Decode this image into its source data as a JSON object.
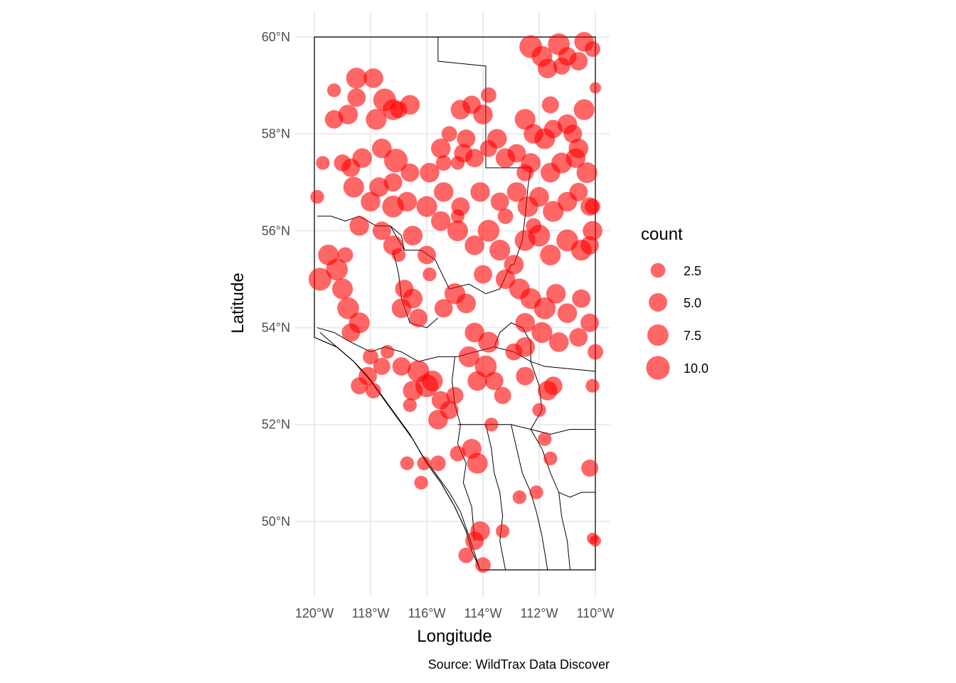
{
  "chart_data": {
    "type": "scatter",
    "title": "",
    "xlabel": "Longitude",
    "ylabel": "Latitude",
    "caption": "Source: WildTrax Data Discover",
    "xlim": [
      -120,
      -110
    ],
    "ylim": [
      49,
      60
    ],
    "x_ticks": [
      {
        "value": -120,
        "label": "120°W"
      },
      {
        "value": -118,
        "label": "118°W"
      },
      {
        "value": -116,
        "label": "116°W"
      },
      {
        "value": -114,
        "label": "114°W"
      },
      {
        "value": -112,
        "label": "112°W"
      },
      {
        "value": -110,
        "label": "110°W"
      }
    ],
    "y_ticks": [
      {
        "value": 50,
        "label": "50°N"
      },
      {
        "value": 52,
        "label": "52°N"
      },
      {
        "value": 54,
        "label": "54°N"
      },
      {
        "value": 56,
        "label": "56°N"
      },
      {
        "value": 58,
        "label": "58°N"
      },
      {
        "value": 60,
        "label": "60°N"
      }
    ],
    "grid": true,
    "point_color": "#ff0000",
    "point_opacity": 0.6,
    "legend": {
      "title": "count",
      "position": "right",
      "entries": [
        {
          "value": 2.5,
          "label": "2.5"
        },
        {
          "value": 5.0,
          "label": "5.0"
        },
        {
          "value": 7.5,
          "label": "7.5"
        },
        {
          "value": 10.0,
          "label": "10.0"
        }
      ]
    },
    "points": [
      [
        -111.3,
        59.85,
        8
      ],
      [
        -110.4,
        59.9,
        6
      ],
      [
        -110.1,
        59.75,
        3
      ],
      [
        -111.7,
        59.35,
        6
      ],
      [
        -111.9,
        59.6,
        7
      ],
      [
        -112.3,
        59.8,
        9
      ],
      [
        -111.0,
        59.6,
        5
      ],
      [
        -111.2,
        59.4,
        4
      ],
      [
        -110.6,
        59.5,
        5
      ],
      [
        -110.0,
        58.95,
        1
      ],
      [
        -118.5,
        59.15,
        7
      ],
      [
        -117.9,
        59.15,
        6
      ],
      [
        -117.5,
        58.7,
        9
      ],
      [
        -117.2,
        58.5,
        7
      ],
      [
        -116.6,
        58.6,
        6
      ],
      [
        -117.8,
        58.3,
        7
      ],
      [
        -118.8,
        58.4,
        6
      ],
      [
        -119.3,
        58.3,
        5
      ],
      [
        -117.0,
        58.5,
        4
      ],
      [
        -118.5,
        58.75,
        5
      ],
      [
        -114.8,
        58.5,
        6
      ],
      [
        -114.4,
        58.6,
        5
      ],
      [
        -114.0,
        58.4,
        6
      ],
      [
        -114.6,
        57.9,
        5
      ],
      [
        -113.5,
        57.9,
        6
      ],
      [
        -112.5,
        58.3,
        7
      ],
      [
        -112.2,
        58.0,
        6
      ],
      [
        -111.8,
        57.9,
        7
      ],
      [
        -111.5,
        58.1,
        5
      ],
      [
        -111.0,
        58.2,
        6
      ],
      [
        -110.8,
        58.0,
        5
      ],
      [
        -110.4,
        58.5,
        7
      ],
      [
        -110.6,
        57.7,
        6
      ],
      [
        -117.1,
        57.45,
        10
      ],
      [
        -117.6,
        57.7,
        6
      ],
      [
        -118.3,
        57.5,
        6
      ],
      [
        -118.7,
        57.3,
        5
      ],
      [
        -119.0,
        57.4,
        4
      ],
      [
        -117.7,
        56.9,
        6
      ],
      [
        -117.2,
        57.0,
        5
      ],
      [
        -116.6,
        57.2,
        5
      ],
      [
        -115.9,
        57.2,
        6
      ],
      [
        -115.5,
        57.7,
        6
      ],
      [
        -114.7,
        57.6,
        5
      ],
      [
        -114.3,
        57.5,
        5
      ],
      [
        -113.8,
        57.7,
        4
      ],
      [
        -113.2,
        57.5,
        6
      ],
      [
        -112.8,
        57.6,
        5
      ],
      [
        -112.3,
        57.4,
        6
      ],
      [
        -111.6,
        57.2,
        6
      ],
      [
        -111.2,
        57.4,
        7
      ],
      [
        -110.7,
        57.5,
        6
      ],
      [
        -110.3,
        57.2,
        7
      ],
      [
        -118.6,
        56.9,
        7
      ],
      [
        -118.0,
        56.6,
        6
      ],
      [
        -117.2,
        56.5,
        8
      ],
      [
        -116.7,
        56.6,
        6
      ],
      [
        -116.0,
        56.5,
        7
      ],
      [
        -115.4,
        56.8,
        6
      ],
      [
        -114.8,
        56.5,
        5
      ],
      [
        -114.1,
        56.8,
        6
      ],
      [
        -113.4,
        56.6,
        5
      ],
      [
        -112.8,
        56.8,
        6
      ],
      [
        -112.4,
        56.5,
        7
      ],
      [
        -112.0,
        56.7,
        6
      ],
      [
        -111.5,
        56.4,
        7
      ],
      [
        -111.0,
        56.6,
        6
      ],
      [
        -110.6,
        56.8,
        5
      ],
      [
        -110.2,
        56.5,
        5
      ],
      [
        -118.4,
        56.1,
        6
      ],
      [
        -117.6,
        56.0,
        5
      ],
      [
        -117.2,
        55.7,
        6
      ],
      [
        -116.5,
        55.9,
        6
      ],
      [
        -116.0,
        55.5,
        5
      ],
      [
        -115.5,
        56.2,
        6
      ],
      [
        -114.9,
        56.0,
        7
      ],
      [
        -114.3,
        55.7,
        6
      ],
      [
        -113.8,
        56.0,
        8
      ],
      [
        -113.4,
        55.6,
        7
      ],
      [
        -112.9,
        55.3,
        6
      ],
      [
        -112.5,
        55.8,
        7
      ],
      [
        -112.0,
        55.9,
        8
      ],
      [
        -111.6,
        55.5,
        7
      ],
      [
        -111.0,
        55.8,
        8
      ],
      [
        -110.5,
        55.6,
        7
      ],
      [
        -110.1,
        56.0,
        6
      ],
      [
        -110.2,
        55.7,
        5
      ],
      [
        -119.5,
        55.5,
        7
      ],
      [
        -119.2,
        55.2,
        8
      ],
      [
        -119.8,
        55.0,
        9
      ],
      [
        -119.0,
        54.8,
        7
      ],
      [
        -118.8,
        54.4,
        8
      ],
      [
        -118.4,
        54.1,
        7
      ],
      [
        -118.7,
        53.9,
        5
      ],
      [
        -116.9,
        54.4,
        6
      ],
      [
        -116.5,
        54.6,
        6
      ],
      [
        -116.8,
        54.8,
        5
      ],
      [
        -116.3,
        54.2,
        5
      ],
      [
        -115.0,
        54.7,
        7
      ],
      [
        -114.6,
        54.5,
        6
      ],
      [
        -115.4,
        54.4,
        5
      ],
      [
        -114.0,
        55.1,
        5
      ],
      [
        -113.2,
        55.0,
        6
      ],
      [
        -112.7,
        54.8,
        7
      ],
      [
        -112.3,
        54.6,
        7
      ],
      [
        -111.8,
        54.4,
        8
      ],
      [
        -111.4,
        54.7,
        6
      ],
      [
        -111.0,
        54.3,
        6
      ],
      [
        -110.5,
        54.6,
        5
      ],
      [
        -110.2,
        54.1,
        5
      ],
      [
        -112.5,
        54.1,
        6
      ],
      [
        -111.9,
        53.9,
        7
      ],
      [
        -111.3,
        53.7,
        6
      ],
      [
        -110.6,
        53.8,
        5
      ],
      [
        -110.0,
        53.5,
        3
      ],
      [
        -114.3,
        53.9,
        6
      ],
      [
        -113.8,
        53.7,
        7
      ],
      [
        -114.5,
        53.4,
        7
      ],
      [
        -113.9,
        53.2,
        8
      ],
      [
        -114.2,
        52.9,
        6
      ],
      [
        -113.6,
        52.9,
        5
      ],
      [
        -113.3,
        52.6,
        4
      ],
      [
        -112.5,
        53.6,
        6
      ],
      [
        -112.9,
        53.5,
        4
      ],
      [
        -116.3,
        53.1,
        8
      ],
      [
        -115.8,
        52.9,
        7
      ],
      [
        -116.5,
        52.7,
        6
      ],
      [
        -115.5,
        52.5,
        5
      ],
      [
        -115.2,
        52.3,
        5
      ],
      [
        -115.6,
        52.1,
        6
      ],
      [
        -116.0,
        52.8,
        9
      ],
      [
        -116.9,
        53.2,
        5
      ],
      [
        -117.6,
        53.2,
        4
      ],
      [
        -118.1,
        53.0,
        5
      ],
      [
        -118.4,
        52.8,
        4
      ],
      [
        -117.9,
        52.7,
        3
      ],
      [
        -115.0,
        52.6,
        4
      ],
      [
        -114.4,
        51.5,
        6
      ],
      [
        -114.2,
        51.2,
        7
      ],
      [
        -114.9,
        51.4,
        3
      ],
      [
        -115.6,
        51.2,
        3
      ],
      [
        -116.1,
        51.2,
        2
      ],
      [
        -116.7,
        51.2,
        2
      ],
      [
        -116.2,
        50.8,
        2
      ],
      [
        -110.2,
        51.1,
        4
      ],
      [
        -111.8,
        51.7,
        2
      ],
      [
        -112.5,
        53.0,
        5
      ],
      [
        -111.5,
        52.8,
        5
      ],
      [
        -111.7,
        52.7,
        6
      ],
      [
        -114.1,
        49.8,
        6
      ],
      [
        -114.3,
        49.6,
        5
      ],
      [
        -114.6,
        49.3,
        3
      ],
      [
        -114.0,
        49.1,
        3
      ],
      [
        -113.3,
        49.8,
        2
      ],
      [
        -112.7,
        50.5,
        2
      ],
      [
        -112.1,
        50.6,
        2
      ],
      [
        -110.1,
        49.65,
        1
      ],
      [
        -110.0,
        49.6,
        1
      ],
      [
        -119.9,
        56.7,
        2
      ],
      [
        -119.7,
        57.4,
        2
      ],
      [
        -119.3,
        58.9,
        2
      ],
      [
        -115.4,
        57.4,
        3
      ],
      [
        -114.9,
        57.4,
        2
      ],
      [
        -113.2,
        56.3,
        3
      ],
      [
        -112.5,
        57.2,
        4
      ],
      [
        -110.1,
        56.5,
        3
      ],
      [
        -117.0,
        55.5,
        2
      ],
      [
        -118.0,
        53.4,
        3
      ],
      [
        -117.4,
        53.5,
        2
      ],
      [
        -116.6,
        52.4,
        2
      ],
      [
        -113.7,
        52.0,
        2
      ],
      [
        -112.0,
        52.3,
        2
      ],
      [
        -111.6,
        51.3,
        2
      ],
      [
        -110.1,
        52.8,
        2
      ],
      [
        -115.9,
        55.1,
        2
      ],
      [
        -112.2,
        56.1,
        3
      ],
      [
        -114.9,
        56.3,
        2
      ],
      [
        -118.9,
        55.5,
        3
      ],
      [
        -111.6,
        58.6,
        4
      ],
      [
        -113.8,
        58.8,
        3
      ],
      [
        -115.2,
        58.0,
        3
      ]
    ],
    "boundary_lines": [
      [
        [
          -115.6,
          60
        ],
        [
          -115.6,
          59.5
        ],
        [
          -113.9,
          59.4
        ],
        [
          -113.9,
          57.3
        ],
        [
          -112.3,
          57.3
        ]
      ],
      [
        [
          -119.9,
          56.3
        ],
        [
          -119.4,
          56.3
        ],
        [
          -118.9,
          56.2
        ],
        [
          -118.4,
          56.3
        ],
        [
          -117.8,
          56.1
        ],
        [
          -117.3,
          56.1
        ],
        [
          -116.8,
          55.6
        ],
        [
          -116.2,
          55.6
        ],
        [
          -115.7,
          55.4
        ],
        [
          -115.2,
          54.8
        ],
        [
          -114.5,
          54.9
        ],
        [
          -113.9,
          54.7
        ],
        [
          -113.4,
          54.8
        ],
        [
          -113.0,
          55.3
        ]
      ],
      [
        [
          -119.9,
          54.0
        ],
        [
          -119.3,
          53.9
        ],
        [
          -118.7,
          53.7
        ],
        [
          -118.0,
          53.5
        ],
        [
          -117.5,
          53.6
        ],
        [
          -116.9,
          53.5
        ],
        [
          -116.3,
          53.3
        ],
        [
          -115.6,
          53.4
        ],
        [
          -114.9,
          53.4
        ],
        [
          -114.3,
          53.5
        ],
        [
          -113.6,
          53.6
        ],
        [
          -112.9,
          53.5
        ],
        [
          -112.3,
          53.3
        ],
        [
          -111.8,
          53.2
        ],
        [
          -110.0,
          53.1
        ]
      ],
      [
        [
          -119.8,
          53.9
        ],
        [
          -119.2,
          53.6
        ],
        [
          -118.6,
          53.3
        ],
        [
          -118.1,
          53.0
        ],
        [
          -117.6,
          52.6
        ],
        [
          -117.1,
          52.2
        ],
        [
          -116.6,
          51.8
        ],
        [
          -116.2,
          51.4
        ],
        [
          -115.7,
          51.0
        ],
        [
          -115.2,
          50.6
        ],
        [
          -114.8,
          50.2
        ],
        [
          -114.5,
          49.7
        ],
        [
          -114.1,
          49.0
        ]
      ],
      [
        [
          -117.2,
          55.6
        ],
        [
          -117.0,
          55.1
        ],
        [
          -116.9,
          54.6
        ],
        [
          -116.6,
          54.1
        ],
        [
          -116.0,
          54.0
        ],
        [
          -115.6,
          54.2
        ]
      ],
      [
        [
          -115.0,
          53.4
        ],
        [
          -115.1,
          52.9
        ],
        [
          -115.0,
          52.4
        ],
        [
          -114.8,
          52.0
        ],
        [
          -114.9,
          51.6
        ],
        [
          -114.6,
          51.2
        ],
        [
          -114.7,
          50.8
        ],
        [
          -114.4,
          50.3
        ],
        [
          -114.3,
          49.6
        ]
      ],
      [
        [
          -114.9,
          52.0
        ],
        [
          -113.9,
          52.0
        ],
        [
          -113.0,
          52.0
        ],
        [
          -112.3,
          51.9
        ],
        [
          -111.6,
          51.8
        ],
        [
          -110.9,
          51.9
        ],
        [
          -110.0,
          51.9
        ]
      ],
      [
        [
          -113.9,
          52.0
        ],
        [
          -113.7,
          51.5
        ],
        [
          -113.6,
          51.0
        ],
        [
          -113.4,
          50.6
        ],
        [
          -113.3,
          50.1
        ],
        [
          -113.4,
          49.6
        ],
        [
          -113.2,
          49.0
        ]
      ],
      [
        [
          -113.0,
          52.0
        ],
        [
          -112.8,
          51.5
        ],
        [
          -112.6,
          51.0
        ],
        [
          -112.3,
          50.6
        ],
        [
          -112.1,
          50.2
        ],
        [
          -111.9,
          49.7
        ],
        [
          -111.7,
          49.0
        ]
      ],
      [
        [
          -112.3,
          51.9
        ],
        [
          -111.9,
          51.5
        ],
        [
          -111.6,
          51.0
        ],
        [
          -111.3,
          50.6
        ],
        [
          -110.9,
          50.5
        ],
        [
          -110.5,
          50.6
        ],
        [
          -110.0,
          50.6
        ]
      ],
      [
        [
          -111.3,
          50.6
        ],
        [
          -111.2,
          50.1
        ],
        [
          -111.0,
          49.6
        ],
        [
          -110.9,
          49.0
        ]
      ],
      [
        [
          -112.3,
          53.3
        ],
        [
          -112.0,
          52.8
        ],
        [
          -111.9,
          52.3
        ],
        [
          -112.3,
          51.9
        ]
      ],
      [
        [
          -116.8,
          55.6
        ],
        [
          -116.9,
          55.9
        ],
        [
          -117.3,
          56.1
        ]
      ],
      [
        [
          -112.3,
          57.3
        ],
        [
          -112.4,
          56.9
        ],
        [
          -112.5,
          56.3
        ],
        [
          -112.6,
          55.8
        ],
        [
          -112.9,
          55.3
        ],
        [
          -113.0,
          55.3
        ]
      ],
      [
        [
          -113.6,
          53.6
        ],
        [
          -113.4,
          53.9
        ],
        [
          -113.0,
          54.1
        ],
        [
          -112.6,
          54.0
        ],
        [
          -112.3,
          53.7
        ],
        [
          -112.3,
          53.3
        ]
      ]
    ]
  }
}
